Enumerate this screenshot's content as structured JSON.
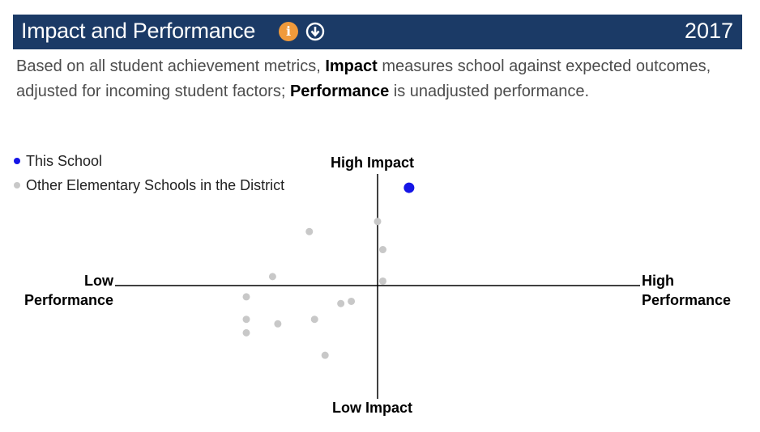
{
  "header": {
    "title": "Impact and Performance",
    "year": "2017",
    "info_icon": "i",
    "icons": [
      "info-icon",
      "download-icon"
    ],
    "background": "#1b3a66"
  },
  "description": {
    "part1": "Based on all student achievement metrics, ",
    "bold1": "Impact",
    "part2": " measures school against expected outcomes, adjusted for incoming student factors; ",
    "bold2": "Performance",
    "part3": " is unadjusted performance."
  },
  "legend": {
    "items": [
      {
        "label": "This School",
        "color": "#1515e6"
      },
      {
        "label": "Other Elementary Schools in the District",
        "color": "#c8c8c8"
      }
    ]
  },
  "axes": {
    "top": "High Impact",
    "bottom": "Low Impact",
    "left_line1": "Low",
    "left_line2": "Performance",
    "right_line1": "High",
    "right_line2": "Performance"
  },
  "chart_data": {
    "type": "scatter",
    "x_axis": {
      "low": "Low Performance",
      "high": "High Performance"
    },
    "y_axis": {
      "low": "Low Impact",
      "high": "High Impact"
    },
    "xlim": [
      -1,
      1
    ],
    "ylim": [
      -1,
      1
    ],
    "series": [
      {
        "name": "This School",
        "color": "#1515e6",
        "points": [
          [
            0.12,
            0.87
          ]
        ]
      },
      {
        "name": "Other Elementary Schools in the District",
        "color": "#c8c8c8",
        "points": [
          [
            0.0,
            0.57
          ],
          [
            0.02,
            0.32
          ],
          [
            0.02,
            0.04
          ],
          [
            -0.26,
            0.48
          ],
          [
            -0.4,
            0.08
          ],
          [
            -0.5,
            -0.1
          ],
          [
            -0.5,
            -0.3
          ],
          [
            -0.5,
            -0.42
          ],
          [
            -0.38,
            -0.34
          ],
          [
            -0.24,
            -0.3
          ],
          [
            -0.14,
            -0.16
          ],
          [
            -0.1,
            -0.14
          ],
          [
            -0.2,
            -0.62
          ]
        ]
      }
    ]
  }
}
